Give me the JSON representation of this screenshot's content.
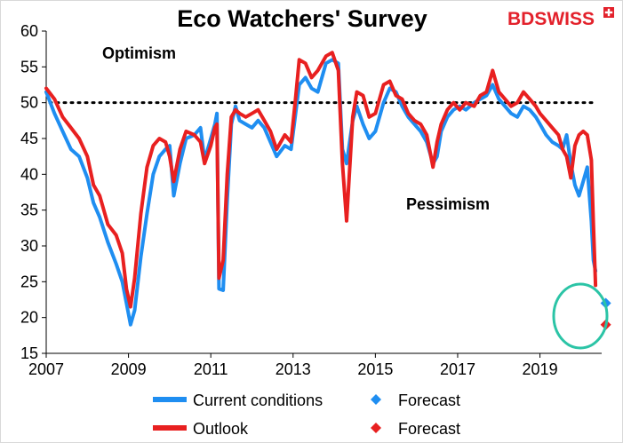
{
  "brand": {
    "bd": "BD",
    "swiss": "SWISS",
    "bd_color": "#e3212b",
    "swiss_color": "#e3212b"
  },
  "annotations": {
    "upper": "Optimism",
    "lower": "Pessimism"
  },
  "colors": {
    "current": "#1f8ef1",
    "outlook": "#e82020",
    "highlight_circle": "#2bc4a6"
  },
  "chart_data": {
    "type": "line",
    "title": "Eco Watchers' Survey",
    "xlabel": "",
    "ylabel": "",
    "xlim": [
      2007.0,
      2020.5
    ],
    "ylim": [
      15,
      60
    ],
    "x_ticks": [
      2007,
      2009,
      2011,
      2013,
      2015,
      2017,
      2019
    ],
    "y_ticks": [
      15,
      20,
      25,
      30,
      35,
      40,
      45,
      50,
      55,
      60
    ],
    "reference_line": {
      "y": 50,
      "style": "dotted"
    },
    "grid": false,
    "legend_position": "bottom",
    "series": [
      {
        "name": "Current conditions",
        "color": "#1f8ef1",
        "points": [
          [
            2007.0,
            51.5
          ],
          [
            2007.2,
            48.5
          ],
          [
            2007.4,
            46.0
          ],
          [
            2007.6,
            43.5
          ],
          [
            2007.8,
            42.5
          ],
          [
            2008.0,
            39.5
          ],
          [
            2008.15,
            36.0
          ],
          [
            2008.3,
            34.0
          ],
          [
            2008.5,
            30.5
          ],
          [
            2008.7,
            27.5
          ],
          [
            2008.85,
            25.0
          ],
          [
            2008.95,
            22.0
          ],
          [
            2009.05,
            19.0
          ],
          [
            2009.15,
            21.0
          ],
          [
            2009.3,
            28.5
          ],
          [
            2009.45,
            34.5
          ],
          [
            2009.6,
            40.0
          ],
          [
            2009.75,
            42.5
          ],
          [
            2009.9,
            43.5
          ],
          [
            2010.0,
            44.0
          ],
          [
            2010.1,
            37.0
          ],
          [
            2010.25,
            41.5
          ],
          [
            2010.4,
            45.0
          ],
          [
            2010.6,
            45.5
          ],
          [
            2010.75,
            46.5
          ],
          [
            2010.85,
            42.0
          ],
          [
            2011.0,
            45.0
          ],
          [
            2011.1,
            47.0
          ],
          [
            2011.15,
            48.5
          ],
          [
            2011.2,
            24.0
          ],
          [
            2011.3,
            23.8
          ],
          [
            2011.4,
            36.5
          ],
          [
            2011.5,
            47.0
          ],
          [
            2011.6,
            49.5
          ],
          [
            2011.7,
            47.5
          ],
          [
            2011.85,
            47.0
          ],
          [
            2012.0,
            46.5
          ],
          [
            2012.15,
            47.5
          ],
          [
            2012.3,
            46.5
          ],
          [
            2012.45,
            44.5
          ],
          [
            2012.6,
            42.5
          ],
          [
            2012.8,
            44.0
          ],
          [
            2012.95,
            43.5
          ],
          [
            2013.05,
            48.0
          ],
          [
            2013.15,
            52.5
          ],
          [
            2013.3,
            53.5
          ],
          [
            2013.45,
            52.0
          ],
          [
            2013.6,
            51.5
          ],
          [
            2013.8,
            55.5
          ],
          [
            2013.95,
            56.0
          ],
          [
            2014.1,
            55.5
          ],
          [
            2014.2,
            43.5
          ],
          [
            2014.3,
            41.5
          ],
          [
            2014.45,
            47.5
          ],
          [
            2014.55,
            49.5
          ],
          [
            2014.7,
            47.0
          ],
          [
            2014.85,
            45.0
          ],
          [
            2015.0,
            46.0
          ],
          [
            2015.2,
            50.0
          ],
          [
            2015.35,
            52.0
          ],
          [
            2015.5,
            51.5
          ],
          [
            2015.65,
            49.5
          ],
          [
            2015.8,
            48.0
          ],
          [
            2015.95,
            47.0
          ],
          [
            2016.1,
            46.0
          ],
          [
            2016.25,
            44.5
          ],
          [
            2016.4,
            41.5
          ],
          [
            2016.5,
            42.5
          ],
          [
            2016.6,
            46.0
          ],
          [
            2016.75,
            48.0
          ],
          [
            2016.9,
            49.0
          ],
          [
            2017.05,
            49.5
          ],
          [
            2017.2,
            49.0
          ],
          [
            2017.4,
            50.0
          ],
          [
            2017.55,
            50.5
          ],
          [
            2017.7,
            51.0
          ],
          [
            2017.85,
            52.5
          ],
          [
            2018.0,
            50.5
          ],
          [
            2018.15,
            49.5
          ],
          [
            2018.3,
            48.5
          ],
          [
            2018.45,
            48.0
          ],
          [
            2018.6,
            49.5
          ],
          [
            2018.75,
            49.0
          ],
          [
            2018.9,
            48.0
          ],
          [
            2019.0,
            47.0
          ],
          [
            2019.15,
            45.5
          ],
          [
            2019.3,
            44.5
          ],
          [
            2019.45,
            44.0
          ],
          [
            2019.55,
            43.5
          ],
          [
            2019.65,
            45.5
          ],
          [
            2019.75,
            41.5
          ],
          [
            2019.85,
            38.5
          ],
          [
            2019.95,
            37.0
          ],
          [
            2020.05,
            39.0
          ],
          [
            2020.15,
            41.0
          ],
          [
            2020.25,
            33.5
          ],
          [
            2020.3,
            28.0
          ],
          [
            2020.35,
            26.5
          ]
        ]
      },
      {
        "name": "Outlook",
        "color": "#e82020",
        "points": [
          [
            2007.0,
            52.0
          ],
          [
            2007.2,
            50.5
          ],
          [
            2007.4,
            48.0
          ],
          [
            2007.6,
            46.5
          ],
          [
            2007.8,
            45.0
          ],
          [
            2008.0,
            42.5
          ],
          [
            2008.15,
            38.5
          ],
          [
            2008.3,
            37.0
          ],
          [
            2008.5,
            33.0
          ],
          [
            2008.7,
            31.5
          ],
          [
            2008.85,
            29.0
          ],
          [
            2008.95,
            24.0
          ],
          [
            2009.05,
            21.5
          ],
          [
            2009.15,
            25.5
          ],
          [
            2009.3,
            34.5
          ],
          [
            2009.45,
            41.0
          ],
          [
            2009.6,
            44.0
          ],
          [
            2009.75,
            45.0
          ],
          [
            2009.9,
            44.5
          ],
          [
            2010.0,
            42.5
          ],
          [
            2010.1,
            39.0
          ],
          [
            2010.25,
            43.5
          ],
          [
            2010.4,
            46.0
          ],
          [
            2010.6,
            45.5
          ],
          [
            2010.75,
            44.5
          ],
          [
            2010.85,
            41.5
          ],
          [
            2011.0,
            44.0
          ],
          [
            2011.1,
            46.5
          ],
          [
            2011.15,
            47.0
          ],
          [
            2011.2,
            25.5
          ],
          [
            2011.3,
            28.0
          ],
          [
            2011.4,
            40.0
          ],
          [
            2011.5,
            48.0
          ],
          [
            2011.6,
            49.0
          ],
          [
            2011.7,
            48.5
          ],
          [
            2011.85,
            48.0
          ],
          [
            2012.0,
            48.5
          ],
          [
            2012.15,
            49.0
          ],
          [
            2012.3,
            47.5
          ],
          [
            2012.45,
            46.0
          ],
          [
            2012.6,
            43.5
          ],
          [
            2012.8,
            45.5
          ],
          [
            2012.95,
            44.5
          ],
          [
            2013.05,
            50.0
          ],
          [
            2013.15,
            56.0
          ],
          [
            2013.3,
            55.5
          ],
          [
            2013.45,
            53.5
          ],
          [
            2013.6,
            54.5
          ],
          [
            2013.8,
            56.5
          ],
          [
            2013.95,
            57.0
          ],
          [
            2014.1,
            54.5
          ],
          [
            2014.2,
            41.5
          ],
          [
            2014.3,
            33.5
          ],
          [
            2014.45,
            48.0
          ],
          [
            2014.55,
            51.5
          ],
          [
            2014.7,
            51.0
          ],
          [
            2014.85,
            48.0
          ],
          [
            2015.0,
            48.5
          ],
          [
            2015.2,
            52.5
          ],
          [
            2015.35,
            53.0
          ],
          [
            2015.5,
            51.0
          ],
          [
            2015.65,
            50.5
          ],
          [
            2015.8,
            48.5
          ],
          [
            2015.95,
            47.5
          ],
          [
            2016.1,
            47.0
          ],
          [
            2016.25,
            45.5
          ],
          [
            2016.4,
            41.0
          ],
          [
            2016.5,
            44.5
          ],
          [
            2016.6,
            47.0
          ],
          [
            2016.75,
            49.0
          ],
          [
            2016.9,
            50.0
          ],
          [
            2017.05,
            49.0
          ],
          [
            2017.2,
            50.0
          ],
          [
            2017.4,
            49.5
          ],
          [
            2017.55,
            51.0
          ],
          [
            2017.7,
            51.5
          ],
          [
            2017.85,
            54.5
          ],
          [
            2018.0,
            51.5
          ],
          [
            2018.15,
            50.5
          ],
          [
            2018.3,
            49.5
          ],
          [
            2018.45,
            50.0
          ],
          [
            2018.6,
            51.5
          ],
          [
            2018.75,
            50.5
          ],
          [
            2018.9,
            49.5
          ],
          [
            2019.0,
            48.5
          ],
          [
            2019.15,
            47.5
          ],
          [
            2019.3,
            46.5
          ],
          [
            2019.45,
            45.5
          ],
          [
            2019.55,
            43.5
          ],
          [
            2019.65,
            42.5
          ],
          [
            2019.75,
            39.5
          ],
          [
            2019.85,
            44.0
          ],
          [
            2019.95,
            45.5
          ],
          [
            2020.05,
            46.0
          ],
          [
            2020.15,
            45.5
          ],
          [
            2020.25,
            42.0
          ],
          [
            2020.3,
            33.0
          ],
          [
            2020.35,
            24.5
          ]
        ]
      }
    ],
    "forecasts": [
      {
        "name": "Forecast",
        "series": "Current conditions",
        "x": 2020.6,
        "y": 22.0,
        "color": "#1f8ef1"
      },
      {
        "name": "Forecast",
        "series": "Outlook",
        "x": 2020.6,
        "y": 19.0,
        "color": "#e82020"
      }
    ]
  }
}
